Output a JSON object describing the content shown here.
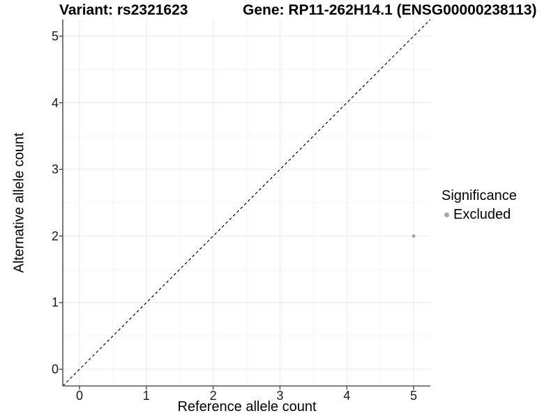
{
  "chart_data": {
    "type": "scatter",
    "title_left": "Variant: rs2321623",
    "title_right": "Gene: RP11-262H14.1 (ENSG00000238113)",
    "xlabel": "Reference allele count",
    "ylabel": "Alternative allele count",
    "xlim": [
      -0.25,
      5.25
    ],
    "ylim": [
      -0.25,
      5.25
    ],
    "x_breaks": [
      0,
      1,
      2,
      3,
      4,
      5
    ],
    "y_breaks": [
      0,
      1,
      2,
      3,
      4,
      5
    ],
    "x_minor_breaks": [
      0.5,
      1.5,
      2.5,
      3.5,
      4.5
    ],
    "y_minor_breaks": [
      0.5,
      1.5,
      2.5,
      3.5,
      4.5
    ],
    "grid": true,
    "legend_position": "right",
    "legend_title": "Significance",
    "series": [
      {
        "name": "Excluded",
        "color": "#a6a6a6",
        "points": [
          {
            "x": 5,
            "y": 2
          }
        ]
      }
    ],
    "reference_line": {
      "type": "identity",
      "slope": 1,
      "intercept": 0,
      "style": "dashed",
      "color": "#000000"
    }
  },
  "colors": {
    "background": "#ffffff",
    "text": "#000000",
    "point": "#a6a6a6",
    "major_grid": "#e9e9e9",
    "minor_grid": "#f4f4f4",
    "axis_line": "#555555",
    "tick_mark": "#4d4d4d",
    "identity_line": "#000000"
  }
}
